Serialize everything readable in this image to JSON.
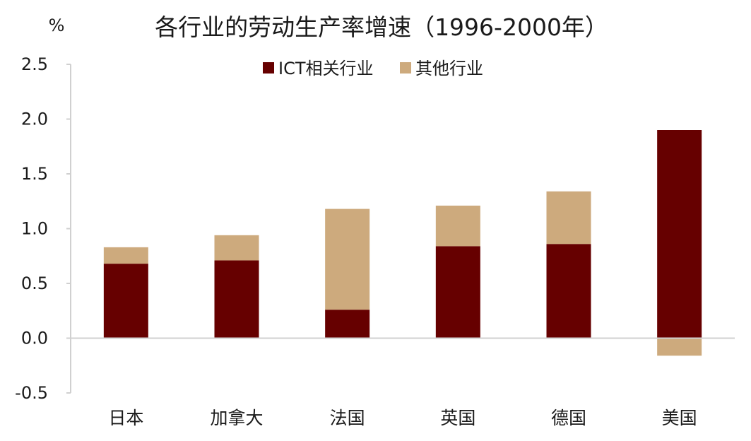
{
  "chart_data": {
    "type": "bar",
    "stacked": true,
    "title": "各行业的劳动生产率增速（1996-2000年）",
    "unit_label": "%",
    "categories": [
      "日本",
      "加拿大",
      "法国",
      "英国",
      "德国",
      "美国"
    ],
    "series": [
      {
        "name": "ICT相关行业",
        "color": "#660000",
        "values": [
          0.68,
          0.71,
          0.26,
          0.84,
          0.86,
          1.9
        ]
      },
      {
        "name": "其他行业",
        "color": "#CDAA7D",
        "values": [
          0.15,
          0.23,
          0.92,
          0.37,
          0.48,
          -0.16
        ]
      }
    ],
    "ylim": [
      -0.5,
      2.5
    ],
    "yticks": [
      "2.5",
      "2.0",
      "1.5",
      "1.0",
      "0.5",
      "0.0",
      "-0.5"
    ],
    "ytick_values": [
      2.5,
      2.0,
      1.5,
      1.0,
      0.5,
      0.0,
      -0.5
    ],
    "legend_position": "top-center",
    "grid": false
  }
}
